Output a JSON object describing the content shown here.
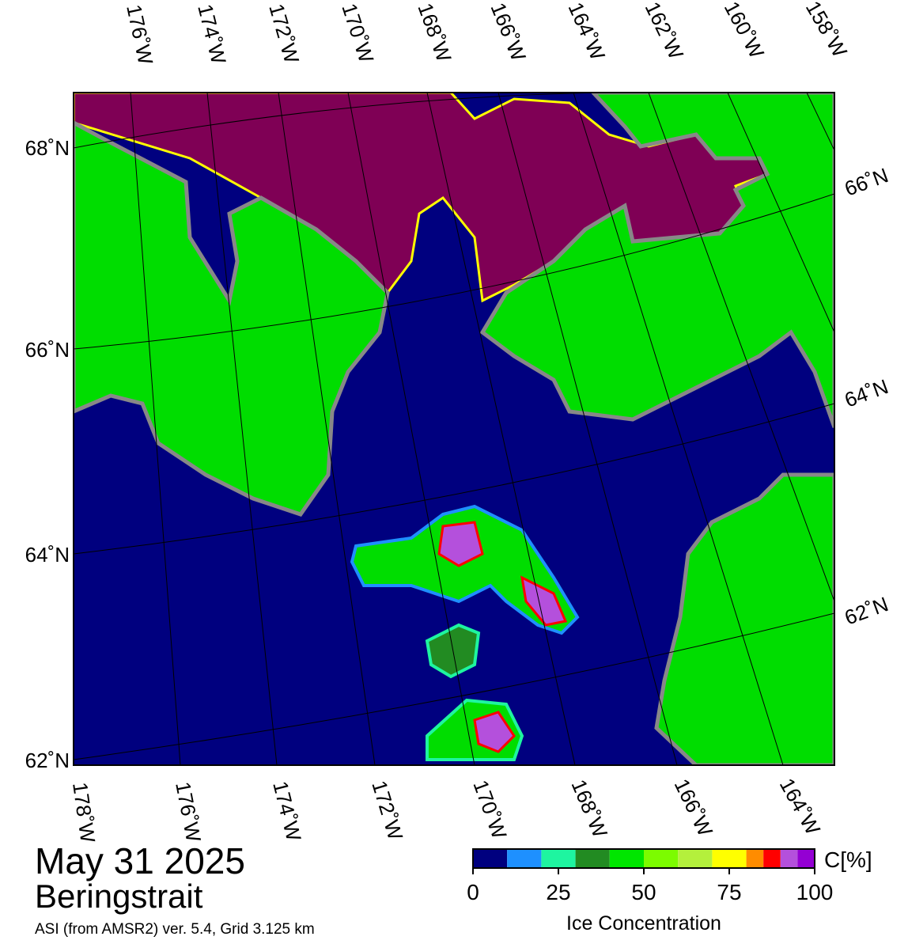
{
  "map": {
    "title": "May 31 2025",
    "region": "Beringstrait",
    "subtitle": "ASI (from AMSR2) ver. 5.4,  Grid 3.125 km",
    "top_labels": [
      "176˚W",
      "174˚W",
      "172˚W",
      "170˚W",
      "168˚W",
      "166˚W",
      "164˚W",
      "162˚W",
      "160˚W",
      "158˚W"
    ],
    "bottom_labels": [
      "178˚W",
      "176˚W",
      "174˚W",
      "172˚W",
      "170˚W",
      "168˚W",
      "166˚W",
      "164˚W"
    ],
    "left_labels": [
      "68˚N",
      "66˚N",
      "64˚N",
      "62˚N"
    ],
    "right_labels": [
      "66˚N",
      "64˚N",
      "62˚N"
    ]
  },
  "colorbar": {
    "unit": "C[%]",
    "label": "Ice Concentration",
    "bins": [
      0,
      10,
      20,
      30,
      40,
      50,
      60,
      70,
      80,
      85,
      90,
      95,
      100
    ],
    "colors": [
      "#00007f",
      "#1e90ff",
      "#1ef5a0",
      "#228b22",
      "#00e600",
      "#7cfc00",
      "#b4f03c",
      "#ffff00",
      "#ff8c00",
      "#ff0000",
      "#b450dc",
      "#9400d3"
    ],
    "ticks": [
      0,
      25,
      50,
      75,
      100
    ]
  }
}
